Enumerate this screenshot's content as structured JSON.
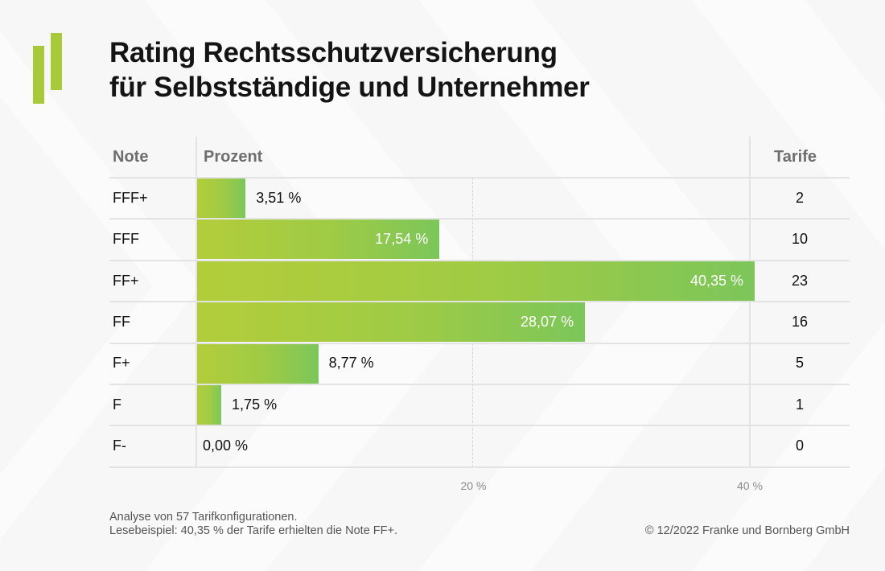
{
  "header": {
    "title_line1": "Rating Rechtsschutzversicherung",
    "title_line2": "für Selbstständige und Unternehmer"
  },
  "columns": {
    "note": "Note",
    "prozent": "Prozent",
    "tarife": "Tarife"
  },
  "chart_data": {
    "type": "bar",
    "orientation": "horizontal",
    "title": "Rating Rechtsschutzversicherung für Selbstständige und Unternehmer",
    "categories": [
      "FFF+",
      "FFF",
      "FF+",
      "FF",
      "F+",
      "F",
      "F-"
    ],
    "values": [
      3.51,
      17.54,
      40.35,
      28.07,
      8.77,
      1.75,
      0.0
    ],
    "value_labels": [
      "3,51 %",
      "17,54 %",
      "40,35 %",
      "28,07 %",
      "8,77 %",
      "1,75 %",
      "0,00 %"
    ],
    "tarife": [
      "2",
      "10",
      "23",
      "16",
      "5",
      "1",
      "0"
    ],
    "xlim": [
      0,
      40.35
    ],
    "xticks": [
      20,
      40
    ],
    "xtick_labels": [
      "20 %",
      "40 %"
    ],
    "xlabel": "Prozent",
    "ylabel": "Note",
    "bar_color_start": "#b3cd3a",
    "bar_color_end": "#7cc65a"
  },
  "footer": {
    "note_line1": "Analyse von 57 Tarifkonfigurationen.",
    "note_line2": "Lesebeispiel: 40,35 % der Tarife erhielten die Note FF+.",
    "copyright": "© 12/2022 Franke und Bornberg GmbH"
  },
  "colors": {
    "accent": "#a8c93a",
    "background": "#f7f7f7"
  }
}
